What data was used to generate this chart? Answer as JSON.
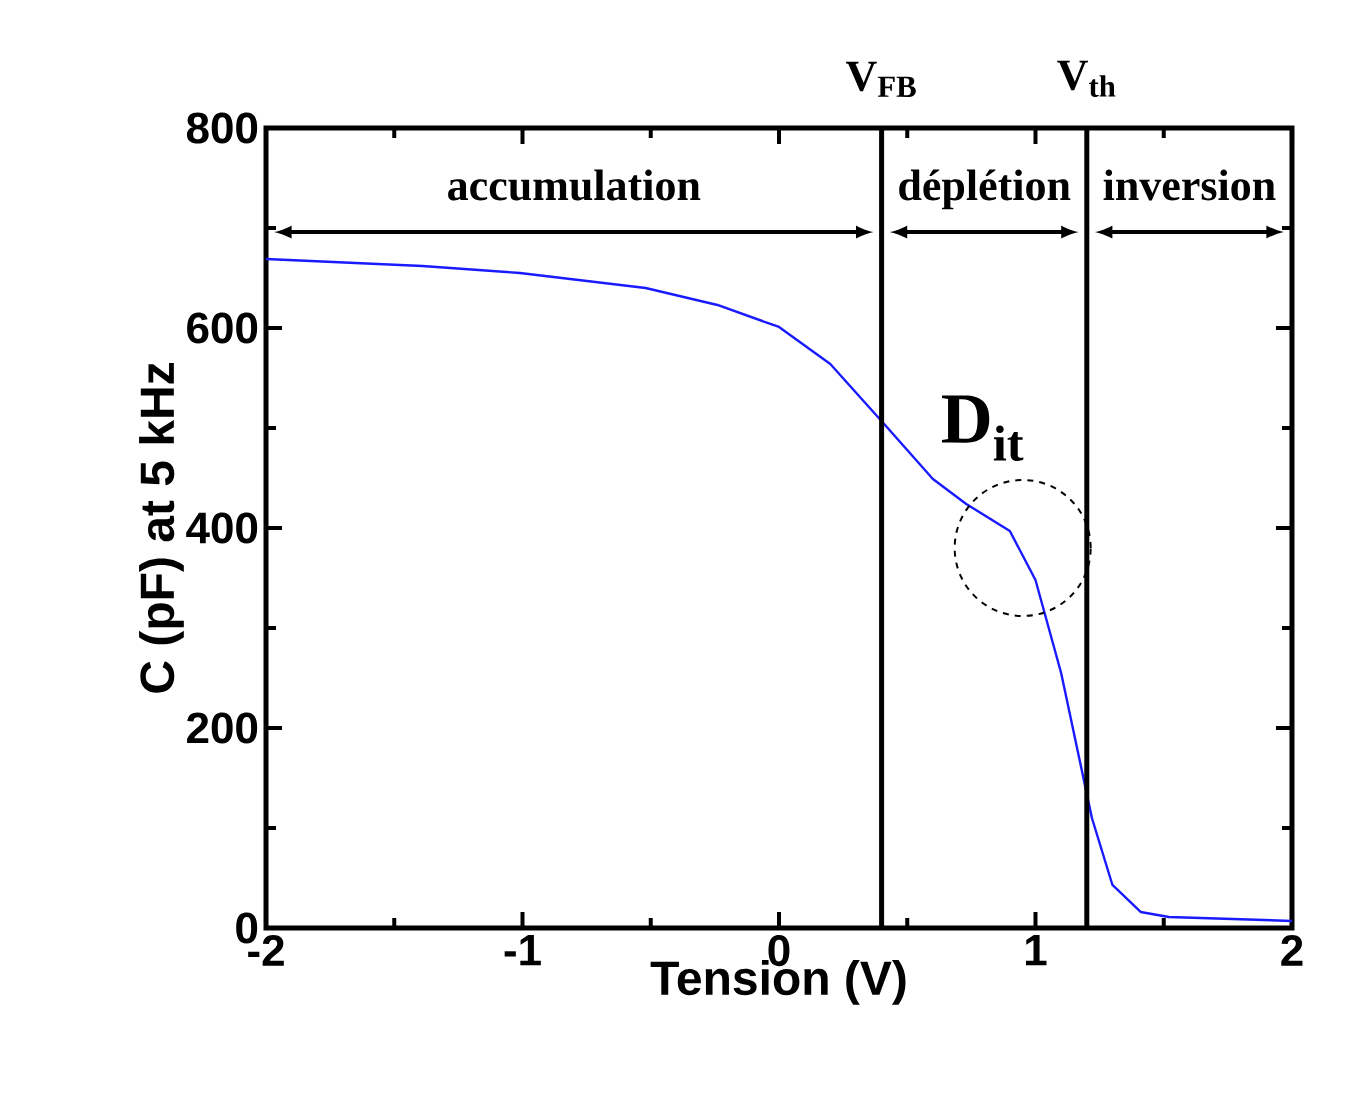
{
  "chart_data": {
    "type": "line",
    "xlabel": "Tension (V)",
    "ylabel": "C (pF) at 5 kHz",
    "xlim": [
      -2,
      2
    ],
    "ylim": [
      0,
      800
    ],
    "xticks": [
      -2,
      -1,
      0,
      1,
      2
    ],
    "yticks": [
      0,
      200,
      400,
      600,
      800
    ],
    "series": [
      {
        "color": "#1a1aff",
        "x": [
          -2,
          -1.39,
          -1.01,
          -0.52,
          -0.24,
          0,
          0.2,
          0.41,
          0.6,
          0.73,
          0.9,
          1.0,
          1.1,
          1.22,
          1.3,
          1.41,
          1.52,
          2.0
        ],
        "values": [
          669,
          662,
          655,
          640,
          623,
          601,
          564,
          504,
          449,
          424,
          397,
          348,
          255,
          110,
          43,
          16,
          11,
          7
        ]
      }
    ],
    "ref_lines": [
      {
        "axis": "x",
        "value": 0.4,
        "label": "V$_{FB}$",
        "color": "#000000"
      },
      {
        "axis": "x",
        "value": 1.2,
        "label": "V$_{th}$",
        "color": "#000000"
      }
    ],
    "annotations": [
      {
        "text": "D$_{it}$",
        "x": 0.95,
        "y": 380
      },
      "accumulation",
      "déplétion",
      "inversion"
    ],
    "grid": false,
    "marker": "none",
    "line_style": "solid"
  }
}
